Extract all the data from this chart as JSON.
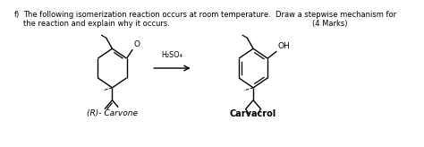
{
  "background_color": "#ffffff",
  "question_number": "f)",
  "question_text_line1": "The following isomerization reaction occurs at room temperature.  Draw a stepwise mechanism for",
  "question_text_line2": "the reaction and explain why it occurs.",
  "marks_text": "(4 Marks)",
  "reagent_text": "H₂SO₄",
  "label_left": "(R)- Carvone",
  "label_right": "Carvacrol",
  "text_fontsize": 6.0,
  "label_fontsize": 6.5,
  "reagent_fontsize": 5.8
}
